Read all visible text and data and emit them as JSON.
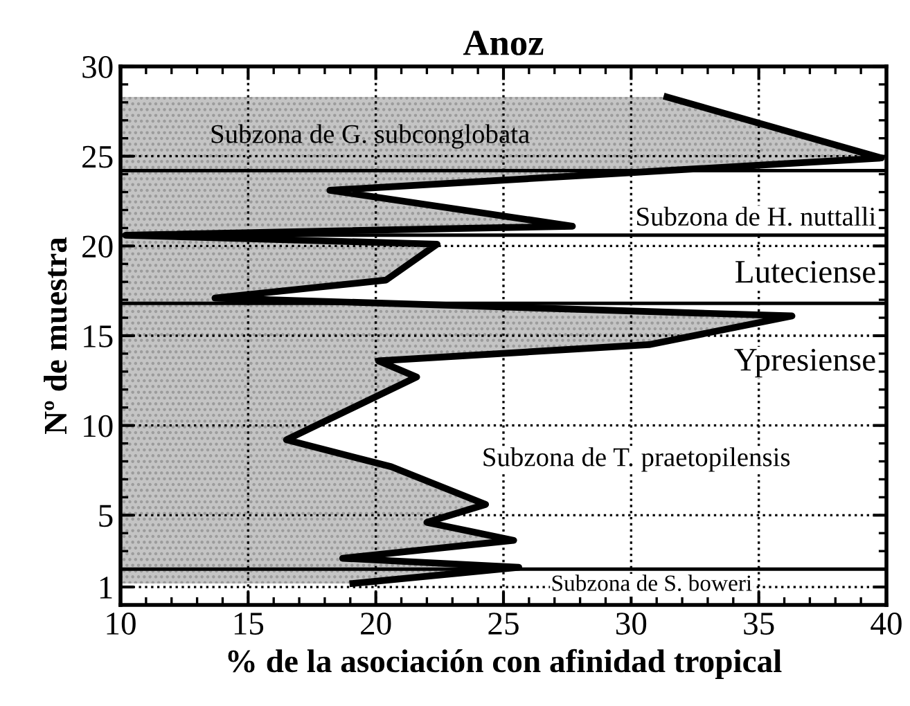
{
  "chart_data": {
    "type": "area",
    "orientation": "horizontal",
    "title": "Anoz",
    "xlabel": "% de la asociación con afinidad tropical",
    "ylabel": "Nº de muestra",
    "series": [
      {
        "color": "#000000",
        "values": [
          31.4,
          39.8,
          18.2,
          27.7,
          10.2,
          22.4,
          20.4,
          13.7,
          36.3,
          30.7,
          20.1,
          21.6,
          16.5,
          20.6,
          24.3,
          22.0,
          25.4,
          18.7,
          25.6,
          19.1
        ],
        "x": [
          28.3,
          24.9,
          23.1,
          21.1,
          20.6,
          20.1,
          18.1,
          17.1,
          16.1,
          14.5,
          13.6,
          12.7,
          9.2,
          7.7,
          5.6,
          4.6,
          3.6,
          2.6,
          2.1,
          1.2
        ]
      }
    ],
    "xlim": [
      10,
      40
    ],
    "xticks": [
      10,
      15,
      20,
      25,
      30,
      35,
      40
    ],
    "ylim": [
      0,
      30
    ],
    "yticks": [
      1,
      5,
      10,
      15,
      20,
      25,
      30
    ],
    "grid": true,
    "ref_lines": [
      {
        "axis": "y",
        "value": 24.2,
        "color": "#000000"
      },
      {
        "axis": "y",
        "value": 20.6,
        "color": "#000000"
      },
      {
        "axis": "y",
        "value": 16.8,
        "color": "#000000"
      },
      {
        "axis": "y",
        "value": 2.0,
        "color": "#000000"
      }
    ],
    "annotations": [
      "Subzona de G. subconglobata",
      "Subzona de H. nuttalli",
      "Luteciense",
      "Ypresiense",
      "Subzona de T. praetopilensis",
      "Subzona de S. boweri"
    ]
  }
}
